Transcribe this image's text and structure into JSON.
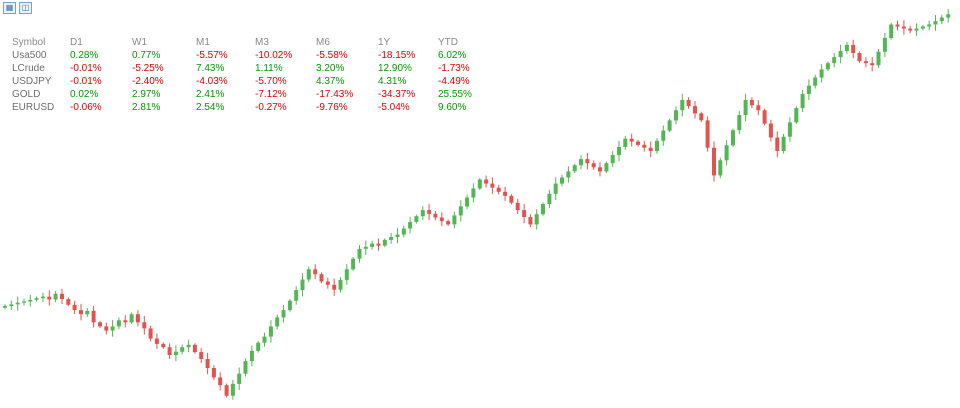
{
  "toolbar": {
    "buttons": [
      {
        "name": "table-toggle",
        "icon": "grid-icon",
        "glyph": "▦"
      },
      {
        "name": "chart-toggle",
        "icon": "bar-chart-icon",
        "glyph": "◫"
      }
    ]
  },
  "performance_table": {
    "headers": [
      "Symbol",
      "D1",
      "W1",
      "M1",
      "M3",
      "M6",
      "1Y",
      "YTD"
    ],
    "rows": [
      {
        "symbol": "Usa500",
        "values": [
          "0.28%",
          "0.77%",
          "-5.57%",
          "-10.02%",
          "-5.58%",
          "-18.15%",
          "6.02%"
        ]
      },
      {
        "symbol": "LCrude",
        "values": [
          "-0.01%",
          "-5.25%",
          "7.43%",
          "1.11%",
          "3.20%",
          "12.90%",
          "-1.73%"
        ]
      },
      {
        "symbol": "USDJPY",
        "values": [
          "-0.01%",
          "-2.40%",
          "-4.03%",
          "-5.70%",
          "4.37%",
          "4.31%",
          "-4.49%"
        ]
      },
      {
        "symbol": "GOLD",
        "values": [
          "0.02%",
          "2.97%",
          "2.41%",
          "-7.12%",
          "-17.43%",
          "-34.37%",
          "25.55%"
        ]
      },
      {
        "symbol": "EURUSD",
        "values": [
          "-0.06%",
          "2.81%",
          "2.54%",
          "-0.27%",
          "-9.76%",
          "-5.04%",
          "9.60%"
        ]
      }
    ]
  },
  "colors": {
    "positive": "#009900",
    "negative": "#e00000",
    "candle_up": "#53b553",
    "candle_down": "#e2534e",
    "background": "#ffffff"
  },
  "chart_data": {
    "type": "candlestick",
    "title": "",
    "xlabel": "",
    "ylabel": "",
    "note": "No axis labels or price scale visible; values normalized 0-100 of chart height. Long uptrend from lower-left to upper-right with a deep dip near the left quarter and two pullbacks in the right third.",
    "ylim": [
      0,
      100
    ],
    "candle_count": 150,
    "closes": [
      25.0,
      25.4,
      25.8,
      26.1,
      26.5,
      26.9,
      27.3,
      26.6,
      28.0,
      26.7,
      25.3,
      24.0,
      23.0,
      23.8,
      21.0,
      20.0,
      19.0,
      20.0,
      21.5,
      21.0,
      23.0,
      21.0,
      19.5,
      17.0,
      15.7,
      14.9,
      13.0,
      13.8,
      14.9,
      15.5,
      13.7,
      12.0,
      9.8,
      7.5,
      5.6,
      3.0,
      5.9,
      8.4,
      11.5,
      14.0,
      16.0,
      17.5,
      20.0,
      22.2,
      24.0,
      26.3,
      28.9,
      31.5,
      34.0,
      32.8,
      31.0,
      30.2,
      29.0,
      31.4,
      34.0,
      36.6,
      39.0,
      39.5,
      40.3,
      39.8,
      41.2,
      41.9,
      42.5,
      44.0,
      45.6,
      47.0,
      48.5,
      47.6,
      46.7,
      45.8,
      45.0,
      47.2,
      49.4,
      51.6,
      53.8,
      56.0,
      55.0,
      54.0,
      53.0,
      52.0,
      50.3,
      48.5,
      46.8,
      45.0,
      47.5,
      50.0,
      52.5,
      55.0,
      56.5,
      58.0,
      59.5,
      61.0,
      60.0,
      59.0,
      58.0,
      60.0,
      62.0,
      64.0,
      66.0,
      65.3,
      64.5,
      63.8,
      63.0,
      65.5,
      68.0,
      70.5,
      73.0,
      75.5,
      74.0,
      72.2,
      70.5,
      63.8,
      57.0,
      60.7,
      64.4,
      68.1,
      71.8,
      75.5,
      74.2,
      73.0,
      69.7,
      66.3,
      63.0,
      66.5,
      70.0,
      73.5,
      77.0,
      79.0,
      81.0,
      83.0,
      84.5,
      86.0,
      87.5,
      89.0,
      87.0,
      85.0,
      84.5,
      84.0,
      87.3,
      90.7,
      94.0,
      93.5,
      93.0,
      92.5,
      93.0,
      93.5,
      94.0,
      94.8,
      95.7,
      96.5
    ]
  }
}
